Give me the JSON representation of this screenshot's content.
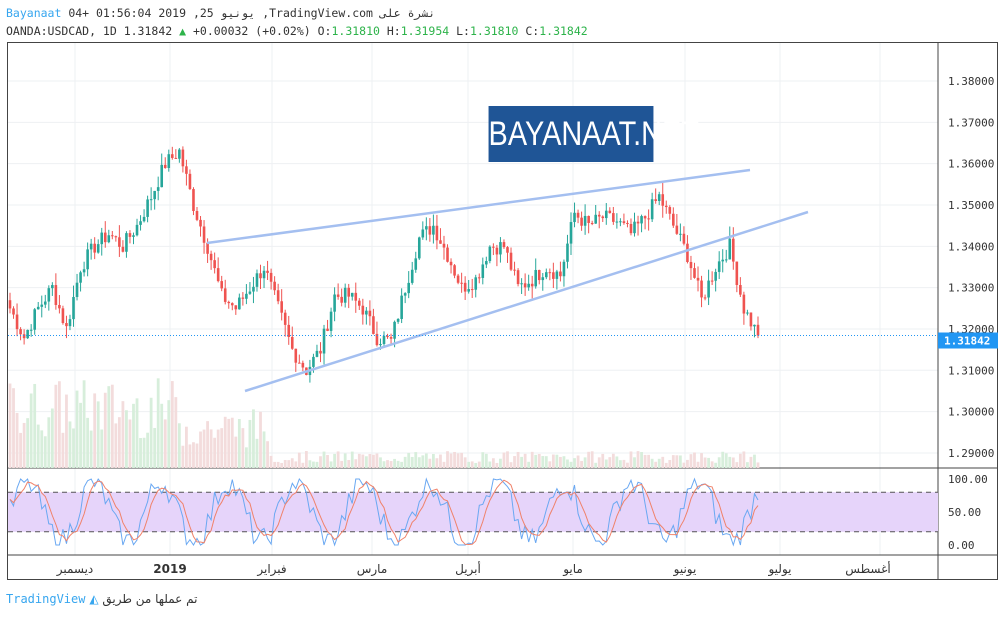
{
  "header": {
    "author": "Bayanaat",
    "published": " 04+ 01:56:04 2019 ,25 يونيو ,TradingView.com نشرة على",
    "symbol": "OANDA:USDCAD, 1D 1.31842",
    "change": " +0.00032 (+0.02%) ",
    "o_label": "O:",
    "o": "1.31810",
    "h_label": " H:",
    "h": "1.31954",
    "l_label": " L:",
    "l": "1.31810",
    "c_label": " C:",
    "c": "1.31842",
    "change_icon": "triangle-up-icon"
  },
  "logo": "BAYANAAT.NET",
  "colors": {
    "up": "#26a69a",
    "down": "#ef5350",
    "trendline": "#a4bff0",
    "price_label": "#2196f3",
    "logo_bg": "#1f5596"
  },
  "chart_data": {
    "type": "candlestick",
    "symbol": "USDCAD",
    "price_ticks": [
      "1.38000",
      "1.37000",
      "1.36000",
      "1.35000",
      "1.34000",
      "1.33000",
      "1.32000",
      "1.31000",
      "1.30000",
      "1.29000"
    ],
    "ylim": [
      1.288,
      1.392
    ],
    "last_price": "1.31842",
    "time_ticks": [
      "ديسمبر",
      "2019",
      "فبراير",
      "مارس",
      "أبريل",
      "مايو",
      "يونيو",
      "يوليو",
      "أغسطس"
    ],
    "closes": [
      1.325,
      1.318,
      1.325,
      1.33,
      1.32,
      1.335,
      1.34,
      1.343,
      1.34,
      1.345,
      1.352,
      1.36,
      1.363,
      1.35,
      1.34,
      1.328,
      1.325,
      1.33,
      1.335,
      1.325,
      1.315,
      1.31,
      1.315,
      1.328,
      1.328,
      1.325,
      1.318,
      1.317,
      1.33,
      1.342,
      1.345,
      1.338,
      1.33,
      1.332,
      1.34,
      1.34,
      1.33,
      1.332,
      1.335,
      1.333,
      1.348,
      1.345,
      1.347,
      1.346,
      1.343,
      1.347,
      1.352,
      1.345,
      1.338,
      1.327,
      1.335,
      1.34,
      1.325,
      1.3184
    ],
    "oscillator": {
      "ticks": [
        "100.00",
        "50.00",
        "0.00"
      ],
      "upper_band": 80,
      "lower_band": 20
    }
  },
  "footer": {
    "text": "تم عملها من طريق",
    "brand": "TradingView"
  }
}
